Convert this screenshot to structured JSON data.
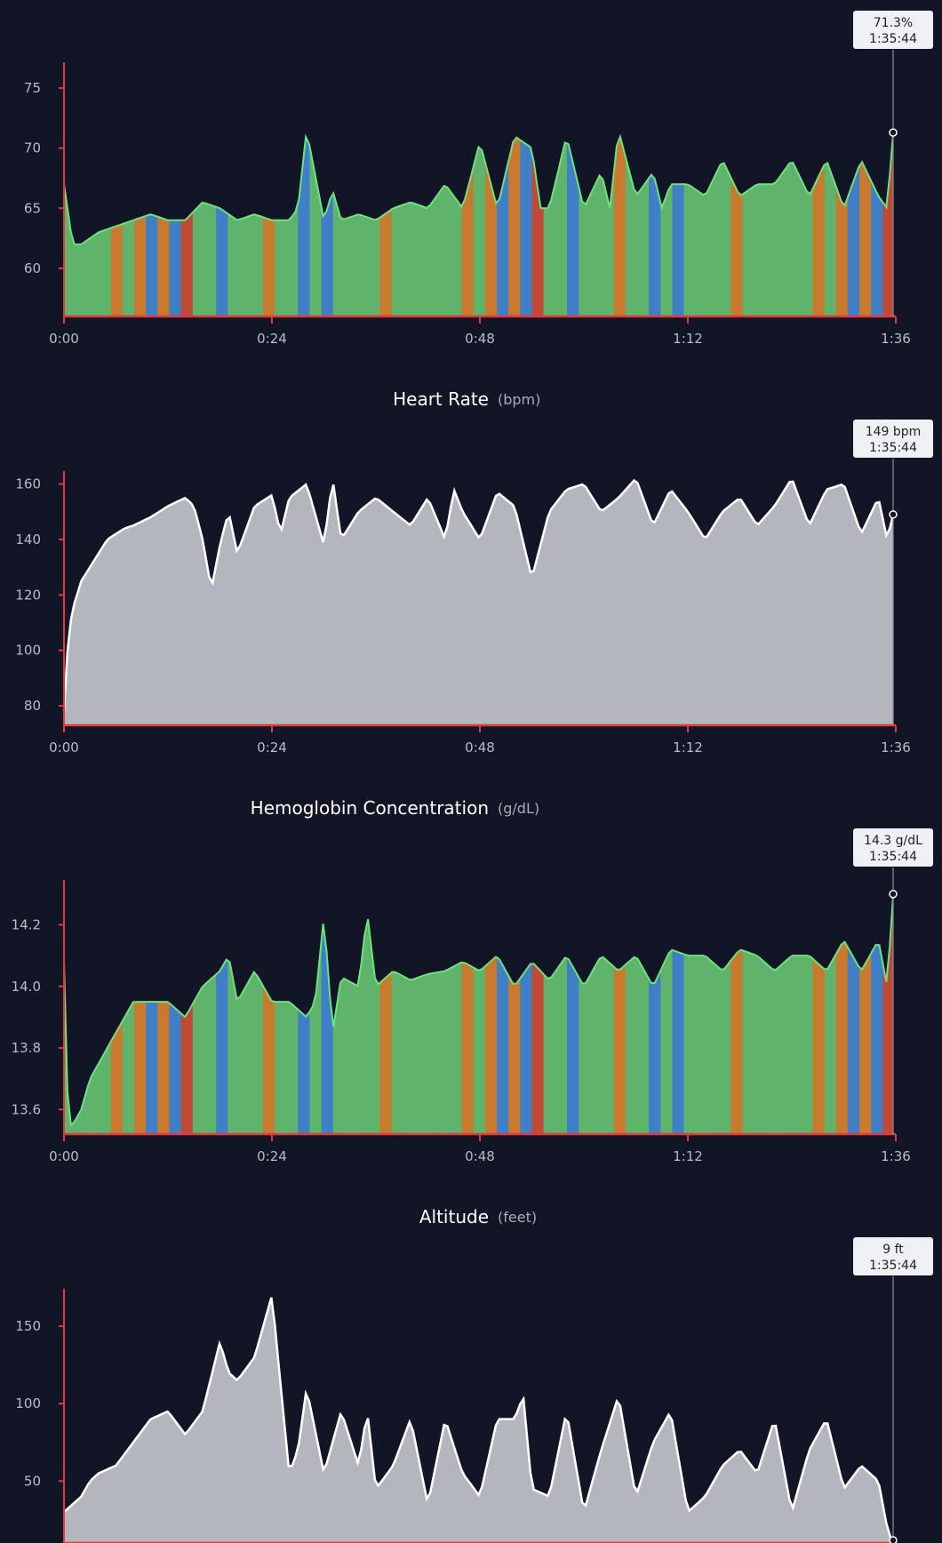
{
  "colors": {
    "background": "#111525",
    "axis": "#e2383f",
    "green": "#5fb36a",
    "green_line": "#6ee27c",
    "blue": "#3e7fc7",
    "blue_line": "#58aee6",
    "orange": "#c97a2e",
    "orange_line": "#e8923a",
    "red": "#c04a36",
    "gray_fill": "#b3b6bd",
    "gray_line": "#ffffff",
    "cursor": "#8a8e99",
    "tooltip_bg": "#eef0f3"
  },
  "x_ticks": [
    "0:00",
    "0:24",
    "0:48",
    "1:12",
    "1:36"
  ],
  "chart_data": [
    {
      "type": "area",
      "title": "",
      "unit": "",
      "y_ticks": [
        "60",
        "65",
        "70",
        "75"
      ],
      "ylim": [
        56,
        77
      ],
      "style": "zones",
      "x_minutes": [
        0,
        1,
        2,
        3,
        4,
        6,
        8,
        10,
        12,
        14,
        16,
        18,
        20,
        22,
        24,
        26,
        27,
        28,
        30,
        31,
        32,
        34,
        36,
        38,
        40,
        42,
        44,
        46,
        48,
        50,
        51,
        52,
        54,
        55,
        56,
        58,
        60,
        62,
        63,
        64,
        66,
        68,
        69,
        70,
        72,
        74,
        76,
        78,
        80,
        82,
        84,
        86,
        88,
        90,
        92,
        94,
        95,
        95.7
      ],
      "values": [
        67,
        62,
        62,
        62.5,
        63,
        63.5,
        64,
        64.5,
        64,
        64,
        65.5,
        65,
        64,
        64.5,
        64,
        64,
        65,
        71.5,
        64,
        66.5,
        64,
        64.5,
        64,
        65,
        65.5,
        65,
        67,
        65,
        70.5,
        65,
        68,
        71,
        70,
        65,
        65,
        71,
        65,
        68,
        65,
        71.5,
        66,
        68,
        65,
        67,
        67,
        66,
        69,
        66,
        67,
        67,
        69,
        66,
        69,
        65,
        69,
        66,
        65,
        71.3
      ],
      "tooltip": {
        "value": "71.3%",
        "time": "1:35:44"
      }
    },
    {
      "type": "area",
      "title": "Heart Rate",
      "unit": "(bpm)",
      "y_ticks": [
        "80",
        "100",
        "120",
        "140",
        "160"
      ],
      "ylim": [
        73,
        164
      ],
      "style": "gray",
      "x_minutes": [
        0,
        0.5,
        1,
        2,
        3,
        4,
        5,
        6,
        7,
        8,
        10,
        12,
        14,
        15,
        16,
        17,
        18,
        19,
        20,
        22,
        24,
        25,
        26,
        28,
        30,
        31,
        32,
        34,
        36,
        38,
        40,
        42,
        44,
        45,
        46,
        48,
        50,
        52,
        54,
        56,
        58,
        60,
        62,
        64,
        66,
        68,
        70,
        72,
        74,
        76,
        78,
        80,
        82,
        84,
        86,
        88,
        90,
        92,
        94,
        95,
        95.7
      ],
      "values": [
        78,
        105,
        115,
        125,
        130,
        135,
        140,
        142,
        144,
        145,
        148,
        152,
        155,
        152,
        140,
        122,
        138,
        150,
        135,
        152,
        156,
        142,
        155,
        160,
        138,
        162,
        140,
        150,
        155,
        150,
        145,
        155,
        140,
        158,
        150,
        140,
        157,
        152,
        126,
        150,
        158,
        160,
        150,
        155,
        162,
        145,
        158,
        150,
        140,
        150,
        155,
        145,
        152,
        162,
        145,
        158,
        160,
        142,
        155,
        140,
        149
      ],
      "tooltip": {
        "value": "149 bpm",
        "time": "1:35:44"
      }
    },
    {
      "type": "area",
      "title": "Hemoglobin Concentration",
      "unit": "(g/dL)",
      "y_ticks": [
        "13.6",
        "13.8",
        "14.0",
        "14.2"
      ],
      "ylim": [
        13.52,
        14.34
      ],
      "style": "zones",
      "x_minutes": [
        0,
        0.5,
        1,
        2,
        3,
        4,
        5,
        6,
        7,
        8,
        10,
        12,
        14,
        16,
        18,
        19,
        20,
        22,
        24,
        26,
        28,
        29,
        30,
        31,
        32,
        34,
        35,
        36,
        38,
        40,
        42,
        44,
        46,
        48,
        50,
        52,
        54,
        56,
        58,
        60,
        62,
        64,
        66,
        68,
        70,
        72,
        74,
        76,
        78,
        80,
        82,
        84,
        86,
        88,
        90,
        92,
        94,
        95,
        95.7
      ],
      "values": [
        14.08,
        13.55,
        13.55,
        13.6,
        13.7,
        13.75,
        13.8,
        13.85,
        13.9,
        13.95,
        13.95,
        13.95,
        13.9,
        14.0,
        14.05,
        14.1,
        13.95,
        14.05,
        13.95,
        13.95,
        13.9,
        13.95,
        14.23,
        13.85,
        14.03,
        14.0,
        14.24,
        14.0,
        14.05,
        14.02,
        14.04,
        14.05,
        14.08,
        14.05,
        14.1,
        14.0,
        14.08,
        14.02,
        14.1,
        14.0,
        14.1,
        14.05,
        14.1,
        14.0,
        14.12,
        14.1,
        14.1,
        14.05,
        14.12,
        14.1,
        14.05,
        14.1,
        14.1,
        14.05,
        14.15,
        14.05,
        14.15,
        14.0,
        14.3
      ],
      "tooltip": {
        "value": "14.3 g/dL",
        "time": "1:35:44"
      }
    },
    {
      "type": "area",
      "title": "Altitude",
      "unit": "(feet)",
      "y_ticks": [
        "50",
        "100",
        "150"
      ],
      "ylim": [
        10,
        173
      ],
      "style": "gray",
      "x_minutes": [
        0,
        1,
        2,
        3,
        4,
        6,
        8,
        10,
        12,
        14,
        16,
        18,
        19,
        20,
        22,
        24,
        26,
        27,
        28,
        30,
        32,
        34,
        35,
        36,
        38,
        40,
        42,
        44,
        46,
        48,
        50,
        52,
        53,
        54,
        56,
        58,
        60,
        62,
        64,
        66,
        68,
        70,
        72,
        74,
        76,
        78,
        80,
        82,
        84,
        86,
        88,
        90,
        92,
        94,
        95,
        95.7
      ],
      "values": [
        30,
        35,
        40,
        50,
        55,
        60,
        75,
        90,
        95,
        80,
        95,
        140,
        120,
        115,
        130,
        170,
        55,
        70,
        110,
        55,
        95,
        60,
        95,
        45,
        60,
        90,
        35,
        90,
        55,
        40,
        90,
        90,
        105,
        45,
        40,
        95,
        30,
        70,
        105,
        40,
        75,
        95,
        30,
        40,
        60,
        70,
        55,
        90,
        30,
        70,
        90,
        45,
        60,
        50,
        20,
        9
      ],
      "tooltip": {
        "value": "9 ft",
        "time": "1:35:44"
      }
    }
  ]
}
